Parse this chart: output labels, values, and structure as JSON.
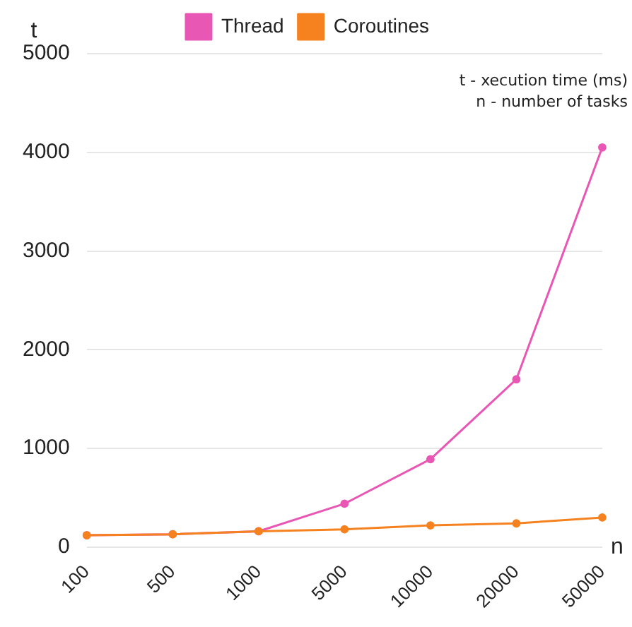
{
  "chart_data": {
    "type": "line",
    "xlabel": "n",
    "ylabel": "t",
    "categories": [
      "100",
      "500",
      "1000",
      "5000",
      "10000",
      "20000",
      "50000"
    ],
    "series": [
      {
        "name": "Thread",
        "color": "#e957b5",
        "values": [
          120,
          130,
          160,
          440,
          890,
          1700,
          4050
        ]
      },
      {
        "name": "Coroutines",
        "color": "#f5821f",
        "values": [
          120,
          130,
          160,
          180,
          220,
          240,
          300
        ]
      }
    ],
    "ylim": [
      0,
      5000
    ],
    "yticks": [
      0,
      1000,
      2000,
      3000,
      4000,
      5000
    ],
    "grid": "y",
    "legend": "top",
    "marker": "circle",
    "line_style": "solid",
    "annotations": [
      "t - xecution time (ms)",
      "n - number of tasks"
    ]
  }
}
